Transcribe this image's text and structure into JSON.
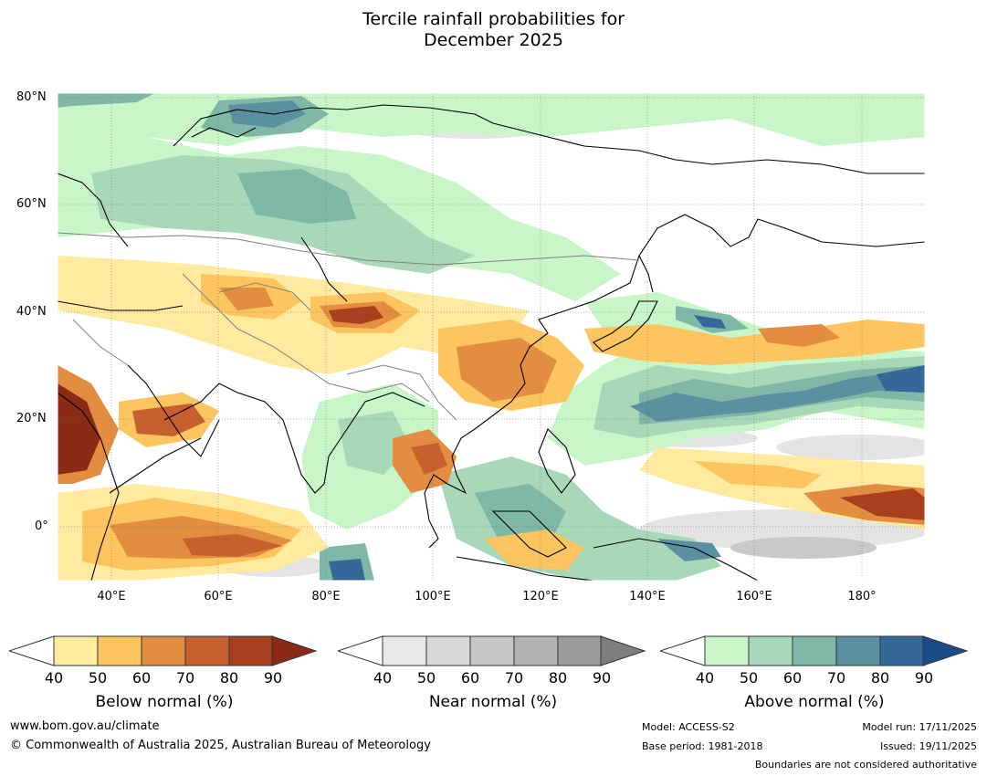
{
  "title": {
    "line1": "Tercile rainfall probabilities for",
    "line2": "December 2025"
  },
  "map": {
    "lat_labels": [
      "80°N",
      "60°N",
      "40°N",
      "20°N",
      "0°"
    ],
    "lon_labels": [
      "40°E",
      "60°E",
      "80°E",
      "100°E",
      "120°E",
      "140°E",
      "160°E",
      "180°"
    ],
    "lat_range": [
      -10,
      80
    ],
    "lon_range": [
      30,
      192
    ]
  },
  "legend": {
    "below": {
      "title": "Below normal (%)",
      "ticks": [
        "40",
        "50",
        "60",
        "70",
        "80",
        "90"
      ],
      "colors": [
        "#ffeaa0",
        "#fdc55f",
        "#e28d40",
        "#c6602e",
        "#a8401f",
        "#8a2b15"
      ]
    },
    "near": {
      "title": "Near normal (%)",
      "ticks": [
        "40",
        "50",
        "60",
        "70",
        "80",
        "90"
      ],
      "colors": [
        "#e8e8e8",
        "#d7d7d7",
        "#c6c6c6",
        "#b2b2b2",
        "#9c9c9c",
        "#7e7e7e"
      ]
    },
    "above": {
      "title": "Above normal (%)",
      "ticks": [
        "40",
        "50",
        "60",
        "70",
        "80",
        "90"
      ],
      "colors": [
        "#c8f6c8",
        "#a8d8b8",
        "#80b8a8",
        "#5a90a0",
        "#336898",
        "#1a4c88"
      ]
    }
  },
  "footer": {
    "website": "www.bom.gov.au/climate",
    "copyright": "© Commonwealth of Australia 2025, Australian Bureau of Meteorology",
    "model": "Model: ACCESS-S2",
    "base_period": "Base period: 1981-2018",
    "model_run": "Model run: 17/11/2025",
    "issued": "Issued: 19/11/2025",
    "disclaimer": "Boundaries are not considered authoritative"
  }
}
